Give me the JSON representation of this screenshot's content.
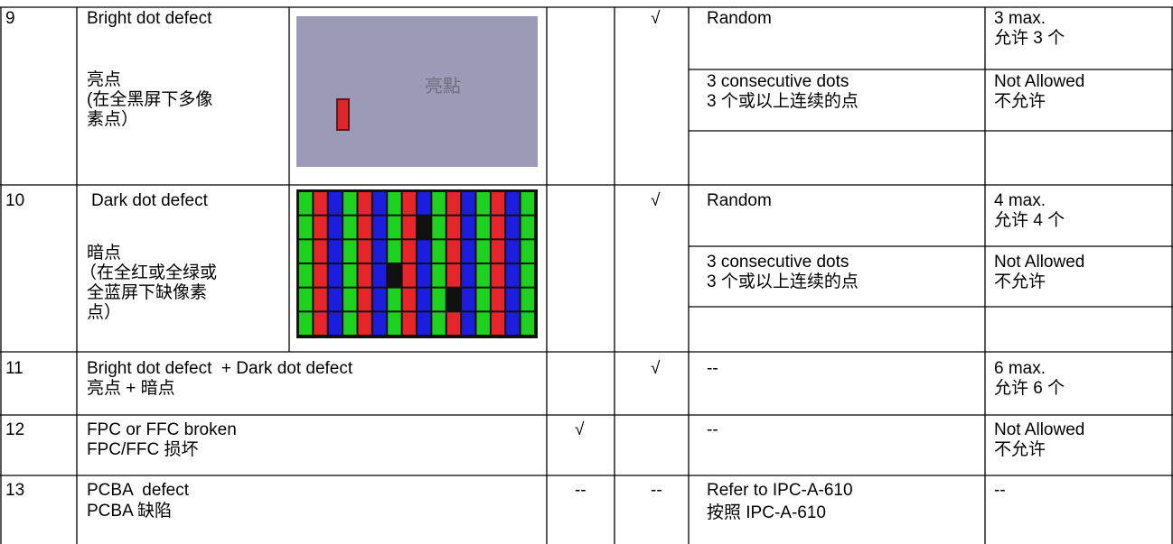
{
  "rows": [
    {
      "number": "9",
      "description": [
        "Bright dot defect",
        "亮点",
        "(在全黑屏下多像",
        "素点）"
      ],
      "image_caption": "亮點",
      "check_b": "√",
      "criteria": [
        {
          "condition": [
            "Random"
          ],
          "limit": [
            "3 max.",
            "允许 3 个"
          ]
        },
        {
          "condition": [
            "3 consecutive dots",
            "3 个或以上连续的点"
          ],
          "limit": [
            "Not Allowed",
            "不允许"
          ]
        }
      ]
    },
    {
      "number": "10",
      "description": [
        "Dark dot defect",
        "暗点",
        "（在全红或全绿或",
        "全蓝屏下缺像素",
        "点）"
      ],
      "check_b": "√",
      "criteria": [
        {
          "condition": [
            "Random"
          ],
          "limit": [
            "4 max.",
            "允许 4 个"
          ]
        },
        {
          "condition": [
            "3 consecutive dots",
            "3 个或以上连续的点"
          ],
          "limit": [
            "Not Allowed",
            "不允许"
          ]
        }
      ]
    },
    {
      "number": "11",
      "description": [
        "Bright dot defect  + Dark dot defect",
        "亮点 + 暗点"
      ],
      "check_b": "√",
      "criteria": [
        {
          "condition": [
            "--"
          ],
          "limit": [
            "6 max.",
            "允许 6 个"
          ]
        }
      ]
    },
    {
      "number": "12",
      "description": [
        "FPC or FFC broken",
        "FPC/FFC 损坏"
      ],
      "check_a": "√",
      "criteria": [
        {
          "condition": [
            "--"
          ],
          "limit": [
            "Not Allowed",
            "不允许"
          ]
        }
      ]
    },
    {
      "number": "13",
      "description": [
        "PCBA  defect",
        "PCBA 缺陷"
      ],
      "check_a": "--",
      "check_b": "--",
      "criteria": [
        {
          "condition": [
            "Refer to IPC-A-610",
            "按照 IPC-A-610"
          ],
          "limit": [
            "--"
          ]
        }
      ]
    }
  ]
}
